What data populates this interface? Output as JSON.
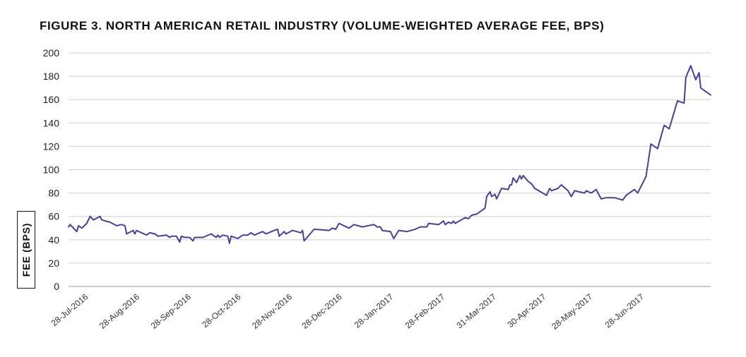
{
  "chart_data": {
    "type": "line",
    "title": "FIGURE 3. NORTH AMERICAN RETAIL INDUSTRY (VOLUME-WEIGHTED AVERAGE FEE, BPS)",
    "xlabel": "",
    "ylabel": "FEE (BPS)",
    "ylim": [
      0,
      200
    ],
    "yticks": [
      0,
      20,
      40,
      60,
      80,
      100,
      120,
      140,
      160,
      180,
      200
    ],
    "grid": true,
    "line_color": "#4b3f8f",
    "x_tick_labels": [
      "28-Jul-2016",
      "28-Aug-2016",
      "28-Sep-2016",
      "28-Oct-2016",
      "28-Nov-2016",
      "28-Dec-2016",
      "28-Jan-2017",
      "28-Feb-2017",
      "31-Mar-2017",
      "30-Apr-2017",
      "28-May-2017",
      "28-Jun-2017"
    ],
    "series": [
      {
        "name": "",
        "points": [
          [
            "2016-07-27",
            51
          ],
          [
            "2016-07-28",
            53
          ],
          [
            "2016-07-30",
            50
          ],
          [
            "2016-08-01",
            47
          ],
          [
            "2016-08-02",
            52
          ],
          [
            "2016-08-04",
            50
          ],
          [
            "2016-08-07",
            54
          ],
          [
            "2016-08-09",
            60
          ],
          [
            "2016-08-11",
            57
          ],
          [
            "2016-08-15",
            60
          ],
          [
            "2016-08-16",
            57
          ],
          [
            "2016-08-21",
            55
          ],
          [
            "2016-08-25",
            52
          ],
          [
            "2016-08-28",
            53
          ],
          [
            "2016-08-30",
            52
          ],
          [
            "2016-08-31",
            45
          ],
          [
            "2016-09-04",
            48
          ],
          [
            "2016-09-05",
            45
          ],
          [
            "2016-09-06",
            48
          ],
          [
            "2016-09-12",
            44
          ],
          [
            "2016-09-14",
            46
          ],
          [
            "2016-09-17",
            45
          ],
          [
            "2016-09-19",
            43
          ],
          [
            "2016-09-24",
            44
          ],
          [
            "2016-09-26",
            42
          ],
          [
            "2016-09-27",
            43
          ],
          [
            "2016-09-30",
            43
          ],
          [
            "2016-10-02",
            38
          ],
          [
            "2016-10-03",
            43
          ],
          [
            "2016-10-05",
            42
          ],
          [
            "2016-10-08",
            42
          ],
          [
            "2016-10-10",
            39
          ],
          [
            "2016-10-11",
            42
          ],
          [
            "2016-10-16",
            42
          ],
          [
            "2016-10-21",
            45
          ],
          [
            "2016-10-24",
            42
          ],
          [
            "2016-10-25",
            44
          ],
          [
            "2016-10-26",
            42
          ],
          [
            "2016-10-28",
            44
          ],
          [
            "2016-10-31",
            43
          ],
          [
            "2016-11-01",
            37
          ],
          [
            "2016-11-02",
            43
          ],
          [
            "2016-11-06",
            41
          ],
          [
            "2016-11-09",
            44
          ],
          [
            "2016-11-12",
            44
          ],
          [
            "2016-11-14",
            46
          ],
          [
            "2016-11-16",
            44
          ],
          [
            "2016-11-21",
            47
          ],
          [
            "2016-11-23",
            45
          ],
          [
            "2016-11-28",
            48
          ],
          [
            "2016-11-30",
            49
          ],
          [
            "2016-12-01",
            43
          ],
          [
            "2016-12-04",
            47
          ],
          [
            "2016-12-05",
            45
          ],
          [
            "2016-12-09",
            48
          ],
          [
            "2016-12-14",
            46
          ],
          [
            "2016-12-15",
            48
          ],
          [
            "2016-12-16",
            39
          ],
          [
            "2016-12-22",
            49
          ],
          [
            "2016-12-31",
            48
          ],
          [
            "2017-01-02",
            50
          ],
          [
            "2017-01-04",
            49
          ],
          [
            "2017-01-06",
            54
          ],
          [
            "2017-01-12",
            50
          ],
          [
            "2017-01-15",
            53
          ],
          [
            "2017-01-20",
            51
          ],
          [
            "2017-01-27",
            53
          ],
          [
            "2017-01-29",
            51
          ],
          [
            "2017-01-31",
            51
          ],
          [
            "2017-02-01",
            48
          ],
          [
            "2017-02-06",
            47
          ],
          [
            "2017-02-08",
            41
          ],
          [
            "2017-02-11",
            48
          ],
          [
            "2017-02-16",
            47
          ],
          [
            "2017-02-21",
            49
          ],
          [
            "2017-02-24",
            51
          ],
          [
            "2017-02-28",
            51
          ],
          [
            "2017-03-01",
            54
          ],
          [
            "2017-03-07",
            53
          ],
          [
            "2017-03-10",
            56
          ],
          [
            "2017-03-11",
            53
          ],
          [
            "2017-03-13",
            55
          ],
          [
            "2017-03-15",
            54
          ],
          [
            "2017-03-16",
            56
          ],
          [
            "2017-03-17",
            54
          ],
          [
            "2017-03-23",
            59
          ],
          [
            "2017-03-25",
            58
          ],
          [
            "2017-03-27",
            61
          ],
          [
            "2017-03-30",
            62
          ],
          [
            "2017-04-04",
            67
          ],
          [
            "2017-04-05",
            77
          ],
          [
            "2017-04-07",
            81
          ],
          [
            "2017-04-08",
            77
          ],
          [
            "2017-04-10",
            79
          ],
          [
            "2017-04-11",
            75
          ],
          [
            "2017-04-14",
            84
          ],
          [
            "2017-04-18",
            83
          ],
          [
            "2017-04-19",
            87
          ],
          [
            "2017-04-20",
            87
          ],
          [
            "2017-04-21",
            93
          ],
          [
            "2017-04-22",
            91
          ],
          [
            "2017-04-23",
            89
          ],
          [
            "2017-04-25",
            95
          ],
          [
            "2017-04-26",
            92
          ],
          [
            "2017-04-27",
            95
          ],
          [
            "2017-04-30",
            90
          ],
          [
            "2017-05-02",
            88
          ],
          [
            "2017-05-04",
            84
          ],
          [
            "2017-05-10",
            79
          ],
          [
            "2017-05-11",
            78
          ],
          [
            "2017-05-13",
            84
          ],
          [
            "2017-05-14",
            82
          ],
          [
            "2017-05-18",
            84
          ],
          [
            "2017-05-20",
            87
          ],
          [
            "2017-05-24",
            82
          ],
          [
            "2017-05-26",
            77
          ],
          [
            "2017-05-28",
            82
          ],
          [
            "2017-06-03",
            80
          ],
          [
            "2017-06-04",
            82
          ],
          [
            "2017-06-07",
            80
          ],
          [
            "2017-06-10",
            83
          ],
          [
            "2017-06-13",
            75
          ],
          [
            "2017-06-16",
            76
          ],
          [
            "2017-06-21",
            76
          ],
          [
            "2017-06-26",
            74
          ],
          [
            "2017-06-28",
            78
          ],
          [
            "2017-07-03",
            83
          ],
          [
            "2017-07-05",
            80
          ],
          [
            "2017-07-10",
            94
          ],
          [
            "2017-07-13",
            122
          ],
          [
            "2017-07-17",
            118
          ],
          [
            "2017-07-21",
            138
          ],
          [
            "2017-07-24",
            135
          ],
          [
            "2017-07-29",
            159
          ],
          [
            "2017-08-02",
            157
          ],
          [
            "2017-08-03",
            179
          ],
          [
            "2017-08-06",
            189
          ],
          [
            "2017-08-09",
            177
          ],
          [
            "2017-08-11",
            183
          ],
          [
            "2017-08-12",
            170
          ],
          [
            "2017-08-18",
            164
          ]
        ]
      }
    ]
  }
}
